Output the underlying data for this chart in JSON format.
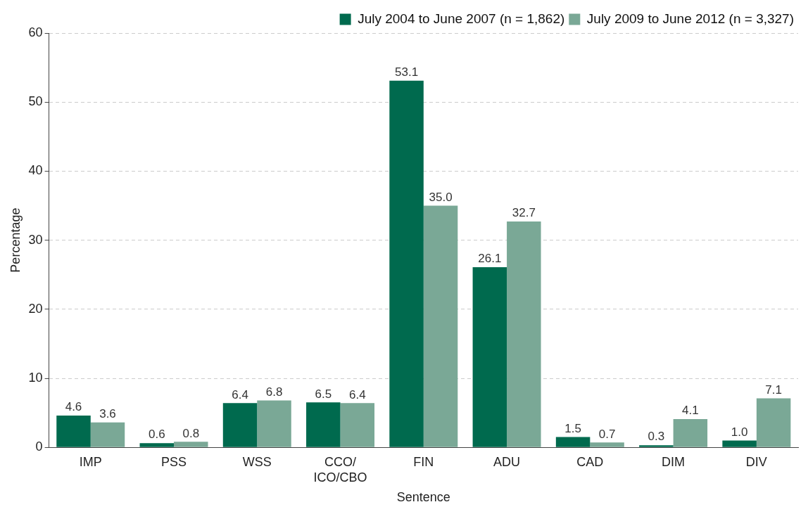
{
  "chart_data": {
    "type": "bar",
    "xlabel": "Sentence",
    "ylabel": "Percentage",
    "categories": [
      "IMP",
      "PSS",
      "WSS",
      "CCO/ICO/CBO",
      "FIN",
      "ADU",
      "CAD",
      "DIM",
      "DIV"
    ],
    "series": [
      {
        "name": "July 2004 to June 2007 (n = 1,862)",
        "color": "#006a4e",
        "values": [
          4.6,
          0.6,
          6.4,
          6.5,
          53.1,
          26.1,
          1.5,
          0.3,
          1.0
        ],
        "value_labels": [
          "4.6",
          "0.6",
          "6.4",
          "6.5",
          "53.1",
          "26.1",
          "1.5",
          "0.3",
          "1.0"
        ]
      },
      {
        "name": "July 2009 to June 2012 (n = 3,327)",
        "color": "#7aa896",
        "values": [
          3.6,
          0.8,
          6.8,
          6.4,
          35.0,
          32.7,
          0.7,
          4.1,
          7.1
        ],
        "value_labels": [
          "3.6",
          "0.8",
          "6.8",
          "6.4",
          "35.0",
          "32.7",
          "0.7",
          "4.1",
          "7.1"
        ]
      }
    ],
    "ylim": [
      0,
      60
    ],
    "yticks": [
      0,
      10,
      20,
      30,
      40,
      50,
      60
    ],
    "grid": "y",
    "legend": "top right"
  }
}
